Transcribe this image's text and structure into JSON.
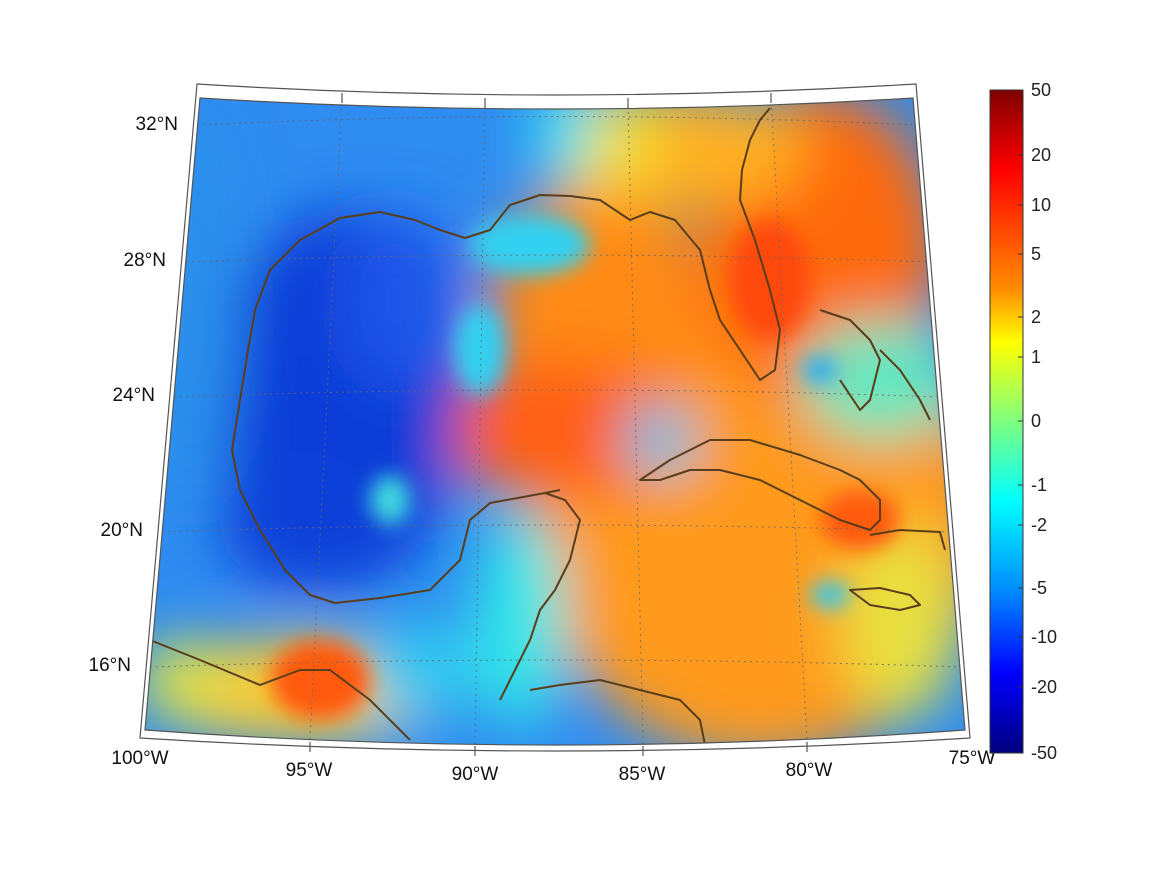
{
  "map": {
    "projection": "conic",
    "grid": true,
    "grid_style": "dotted",
    "colormap": "jet",
    "colors": {
      "coastline": "#5a3e1b",
      "frame": "#555555",
      "grid": "#666666"
    },
    "lat_labels": [
      "32°N",
      "28°N",
      "24°N",
      "20°N",
      "16°N"
    ],
    "lon_labels": [
      "100°W",
      "95°W",
      "90°W",
      "85°W",
      "80°W",
      "75°W"
    ]
  },
  "colorbar": {
    "position": "right",
    "ticks": [
      "50",
      "20",
      "10",
      "5",
      "2",
      "1",
      "0",
      "-1",
      "-2",
      "-5",
      "-10",
      "-20",
      "-50"
    ]
  }
}
